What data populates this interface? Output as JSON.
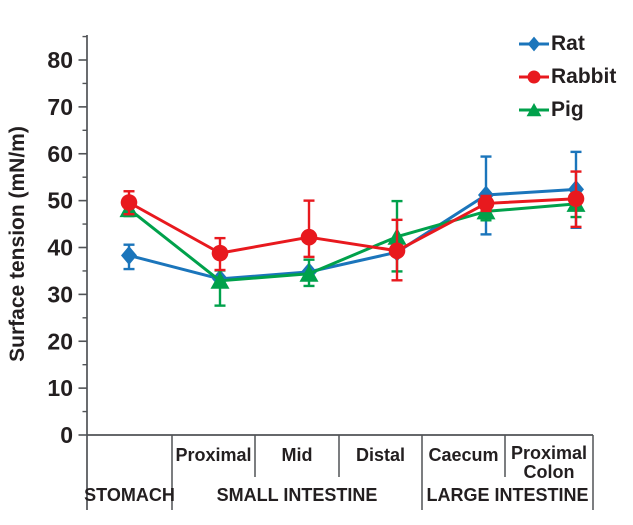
{
  "figure": {
    "background": "#ffffff",
    "axis_color": "#515356",
    "text_color": "#231f20"
  },
  "chart_data": {
    "type": "line",
    "title": "",
    "xlabel": "",
    "ylabel": "Surface tension (mN/m)",
    "ylim": [
      0,
      85
    ],
    "yticks": [
      0,
      10,
      20,
      30,
      40,
      50,
      60,
      70,
      80
    ],
    "y_minor_step": 5,
    "grid": false,
    "legend_position": "top-right",
    "error_bars": true,
    "categories": [
      "Stomach",
      "Proximal",
      "Mid",
      "Distal",
      "Caecum",
      "Proximal Colon"
    ],
    "sub_labels": [
      "",
      "Proximal",
      "Mid",
      "Distal",
      "Caecum",
      "Proximal\nColon"
    ],
    "group_labels": [
      {
        "label": "STOMACH",
        "start": 0,
        "end": 0
      },
      {
        "label": "SMALL INTESTINE",
        "start": 1,
        "end": 3
      },
      {
        "label": "LARGE INTESTINE",
        "start": 4,
        "end": 5
      }
    ],
    "series": [
      {
        "name": "Rat",
        "marker": "diamond",
        "color": "#1B75BB",
        "values": [
          38.3,
          33.3,
          34.8,
          39.0,
          51.2,
          52.4
        ],
        "err_plus": [
          2.3,
          0,
          0,
          0,
          8.2,
          8.0
        ],
        "err_minus": [
          2.9,
          0,
          0,
          0,
          8.4,
          8.2
        ]
      },
      {
        "name": "Rabbit",
        "marker": "circle",
        "color": "#E8191E",
        "values": [
          49.6,
          38.8,
          42.2,
          39.3,
          49.4,
          50.4
        ],
        "err_plus": [
          2.4,
          3.2,
          7.8,
          6.6,
          1.6,
          5.8
        ],
        "err_minus": [
          2.5,
          3.6,
          4.2,
          6.3,
          1.6,
          6.0
        ]
      },
      {
        "name": "Pig",
        "marker": "triangle",
        "color": "#00A14B",
        "values": [
          48.2,
          32.9,
          34.4,
          42.3,
          47.7,
          49.3
        ],
        "err_plus": [
          1.5,
          2.2,
          3.0,
          7.6,
          2.2,
          2.3
        ],
        "err_minus": [
          1.5,
          5.3,
          2.6,
          7.4,
          1.9,
          2.8
        ]
      }
    ]
  }
}
